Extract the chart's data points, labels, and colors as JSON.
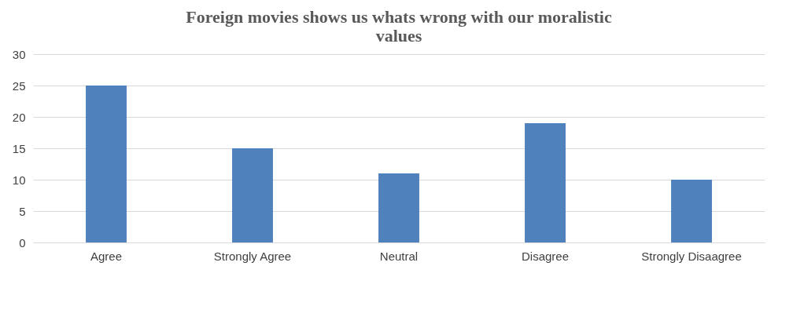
{
  "chart_data": {
    "type": "bar",
    "title": "Foreign movies shows us whats wrong with our moralistic values",
    "categories": [
      "Agree",
      "Strongly Agree",
      "Neutral",
      "Disagree",
      "Strongly Disaagree"
    ],
    "values": [
      25,
      15,
      11,
      19,
      10
    ],
    "color": "#4f81bd",
    "ylim": [
      0,
      30
    ],
    "yticks": [
      0,
      5,
      10,
      15,
      20,
      25,
      30
    ],
    "grid": "y"
  }
}
